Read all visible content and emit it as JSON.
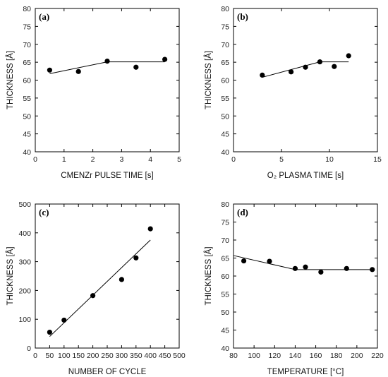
{
  "chart_data": [
    {
      "type": "scatter",
      "panel_label": "(a)",
      "xlabel": "CMENZr PULSE TIME [s]",
      "ylabel": "THICKNESS [Å]",
      "xlim": [
        0,
        5
      ],
      "ylim": [
        40,
        80
      ],
      "xticks": [
        0,
        1,
        2,
        3,
        4,
        5
      ],
      "yticks": [
        40,
        45,
        50,
        55,
        60,
        65,
        70,
        75,
        80
      ],
      "grid": false,
      "points": {
        "x": [
          0.5,
          1.5,
          2.5,
          3.5,
          4.5
        ],
        "y": [
          62.8,
          62.4,
          65.3,
          63.6,
          65.8
        ]
      },
      "fit_line": {
        "x": [
          0.5,
          2.5,
          4.5
        ],
        "y": [
          61.8,
          65.1,
          65.1
        ]
      }
    },
    {
      "type": "scatter",
      "panel_label": "(b)",
      "xlabel": "O₂ PLASMA TIME [s]",
      "ylabel": "THICKNESS [Å]",
      "xlim": [
        0,
        15
      ],
      "ylim": [
        40,
        80
      ],
      "xticks": [
        0,
        5,
        10,
        15
      ],
      "yticks": [
        40,
        45,
        50,
        55,
        60,
        65,
        70,
        75,
        80
      ],
      "grid": false,
      "points": {
        "x": [
          3,
          6,
          7.5,
          9,
          10.5,
          12
        ],
        "y": [
          61.4,
          62.3,
          63.6,
          65.1,
          63.8,
          66.8
        ]
      },
      "fit_line": {
        "x": [
          3,
          9,
          12
        ],
        "y": [
          60.8,
          65.1,
          65.1
        ]
      }
    },
    {
      "type": "scatter",
      "panel_label": "(c)",
      "xlabel": "NUMBER OF CYCLE",
      "ylabel": "THICKNESS [Å]",
      "xlim": [
        0,
        500
      ],
      "ylim": [
        0,
        500
      ],
      "xticks": [
        0,
        50,
        100,
        150,
        200,
        250,
        300,
        350,
        400,
        450,
        500
      ],
      "yticks": [
        0,
        100,
        200,
        300,
        400,
        500
      ],
      "grid": false,
      "points": {
        "x": [
          50,
          100,
          200,
          300,
          350,
          400
        ],
        "y": [
          55,
          97,
          182,
          238,
          313,
          414
        ]
      },
      "fit_line": {
        "x": [
          50,
          400
        ],
        "y": [
          40,
          375
        ]
      }
    },
    {
      "type": "scatter",
      "panel_label": "(d)",
      "xlabel": "TEMPERATURE [°C]",
      "ylabel": "THICKNESS [Å]",
      "xlim": [
        80,
        220
      ],
      "ylim": [
        40,
        80
      ],
      "xticks": [
        80,
        100,
        120,
        140,
        160,
        180,
        200,
        220
      ],
      "yticks": [
        40,
        45,
        50,
        55,
        60,
        65,
        70,
        75,
        80
      ],
      "grid": false,
      "points": {
        "x": [
          90,
          115,
          140,
          150,
          165,
          190,
          215
        ],
        "y": [
          64.2,
          64.1,
          62.1,
          62.5,
          61.1,
          62.1,
          61.8
        ]
      },
      "fit_line": {
        "x": [
          80,
          140,
          215
        ],
        "y": [
          65.7,
          61.8,
          61.8
        ]
      }
    }
  ]
}
